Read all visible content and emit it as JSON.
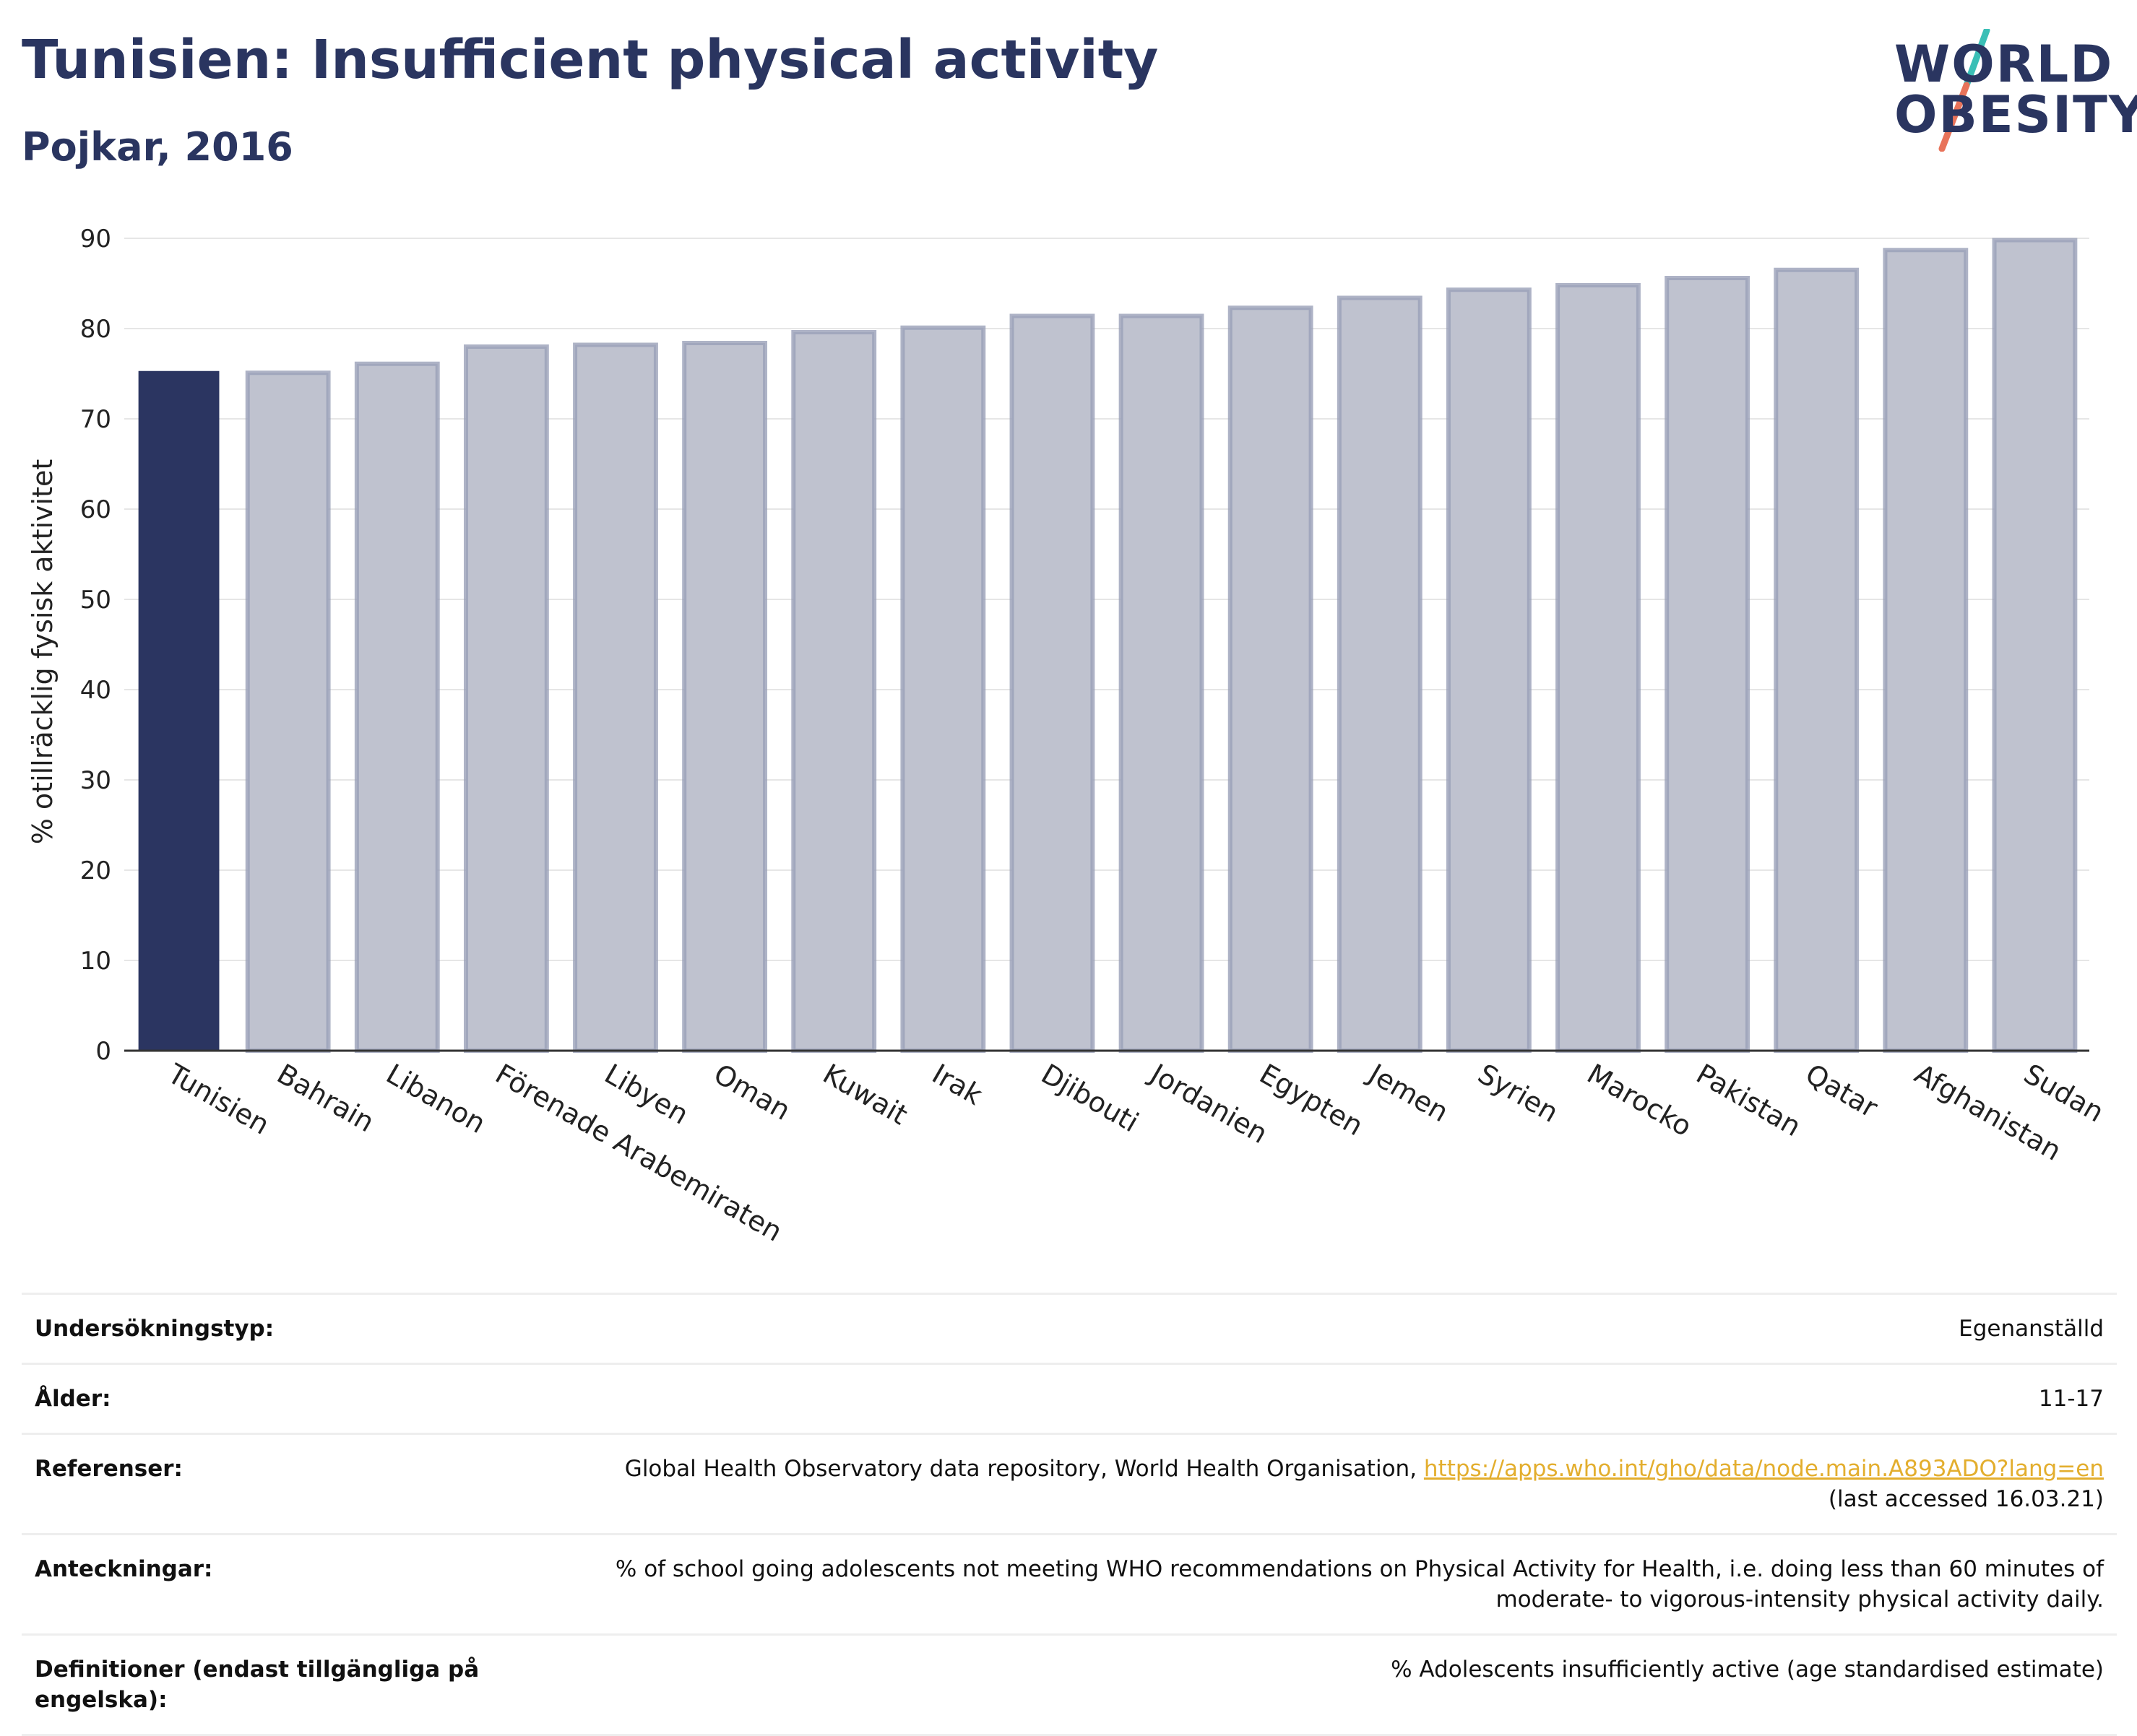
{
  "header": {
    "title": "Tunisien: Insufficient physical activity",
    "subtitle": "Pojkar, 2016"
  },
  "logo": {
    "line1": "WORLD",
    "line2": "OBESITY",
    "text_color": "#2a3560",
    "slash_top": "#3bbfb6",
    "slash_bottom": "#e8735a"
  },
  "colors": {
    "highlight": "#2b3561",
    "bar": "#bfc2cf",
    "bar_border": "#9aa0b8",
    "grid": "#e6e6e6",
    "axis": "#333333"
  },
  "chart_data": {
    "type": "bar",
    "title": "Tunisien: Insufficient physical activity",
    "subtitle": "Pojkar, 2016",
    "ylabel": "% otillräcklig fysisk aktivitet",
    "xlabel": "",
    "ylim": [
      0,
      90
    ],
    "yticks": [
      0,
      10,
      20,
      30,
      40,
      50,
      60,
      70,
      80,
      90
    ],
    "grid": true,
    "highlight": "Tunisien",
    "categories": [
      "Tunisien",
      "Bahrain",
      "Libanon",
      "Förenade Arabemiraten",
      "Libyen",
      "Oman",
      "Kuwait",
      "Irak",
      "Djibouti",
      "Jordanien",
      "Egypten",
      "Jemen",
      "Syrien",
      "Marocko",
      "Pakistan",
      "Qatar",
      "Afghanistan",
      "Sudan"
    ],
    "values": [
      75.3,
      75.1,
      76.1,
      78.0,
      78.2,
      78.4,
      79.6,
      80.1,
      81.4,
      81.4,
      82.3,
      83.4,
      84.3,
      84.8,
      85.6,
      86.5,
      88.7,
      89.8
    ]
  },
  "info": {
    "rows": [
      {
        "label": "Undersökningstyp:",
        "value": "Egenanställd"
      },
      {
        "label": "Ålder:",
        "value": "11-17"
      },
      {
        "label": "Referenser:",
        "value_prefix": "Global Health Observatory data repository, World Health Organisation, ",
        "link": "https://apps.who.int/gho/data/node.main.A893ADO?lang=en",
        "value_suffix": "(last accessed 16.03.21)"
      },
      {
        "label": "Anteckningar:",
        "value": "% of school going adolescents not meeting WHO recommendations on Physical Activity for Health, i.e. doing less than 60 minutes of moderate- to vigorous-intensity physical activity daily."
      },
      {
        "label": "Definitioner (endast tillgängliga på engelska):",
        "value": "% Adolescents insufficiently active (age standardised estimate)"
      }
    ]
  }
}
